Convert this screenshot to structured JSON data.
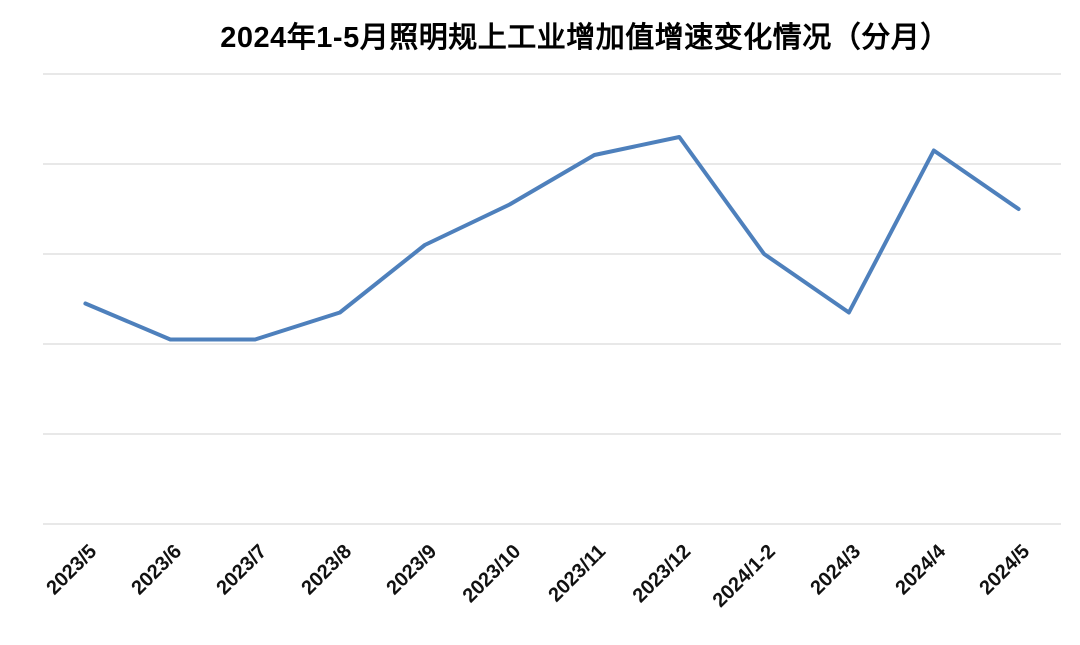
{
  "chart": {
    "line_color": "#4E80BC",
    "gridline_color": "#D9D9D9",
    "title_color": "#000000",
    "axis_label_color": "#111111"
  },
  "chart_data": {
    "type": "line",
    "title": "2024年1-5月照明规上工业增加值增速变化情况（分月）",
    "categories": [
      "2023/5",
      "2023/6",
      "2023/7",
      "2023/8",
      "2023/9",
      "2023/10",
      "2023/11",
      "2023/12",
      "2024/1-2",
      "2024/3",
      "2024/4",
      "2024/5"
    ],
    "series": [
      {
        "name": "增速",
        "values": [
          4.9,
          4.1,
          4.1,
          4.7,
          6.2,
          7.1,
          8.2,
          8.6,
          6.0,
          4.7,
          8.3,
          7.0
        ]
      }
    ],
    "xlabel": "",
    "ylabel": "",
    "ylim": [
      0,
      10
    ],
    "y_gridline_step": 2,
    "grid": true,
    "legend": false,
    "y_axis_tick_labels_visible": false,
    "x_tick_label_rotation_deg": 45
  }
}
